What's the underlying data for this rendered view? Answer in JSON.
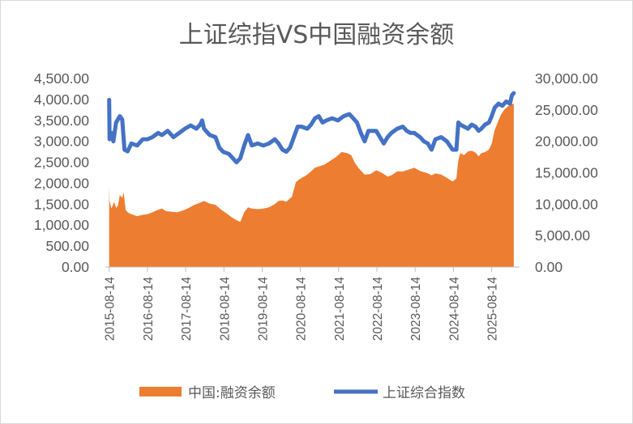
{
  "chart_data": {
    "type": "area+line",
    "title": "上证综指VS中国融资余额",
    "x_ticks": [
      "2015-08-14",
      "2016-08-14",
      "2017-08-14",
      "2018-08-14",
      "2019-08-14",
      "2020-08-14",
      "2021-08-14",
      "2022-08-14",
      "2023-08-14",
      "2024-08-14",
      "2025-08-14"
    ],
    "y_left": {
      "ticks": [
        "4,500.00",
        "4,000.00",
        "3,500.00",
        "3,000.00",
        "2,500.00",
        "2,000.00",
        "1,500.00",
        "1,000.00",
        "500.00",
        "0.00"
      ],
      "range": [
        0,
        4500
      ]
    },
    "y_right": {
      "ticks": [
        "30,000.00",
        "25,000.00",
        "20,000.00",
        "15,000.00",
        "10,000.00",
        "5,000.00",
        "0.00"
      ],
      "range": [
        0,
        30000
      ]
    },
    "x_range": [
      2015.52,
      2026.35
    ],
    "series": [
      {
        "name": "中国:融资余额",
        "kind": "area",
        "axis": "right",
        "color": "#ED7D31",
        "points": [
          [
            2015.62,
            12900
          ],
          [
            2015.63,
            10500
          ],
          [
            2015.68,
            9300
          ],
          [
            2015.75,
            10400
          ],
          [
            2015.8,
            9400
          ],
          [
            2015.85,
            9800
          ],
          [
            2015.9,
            11500
          ],
          [
            2015.96,
            11000
          ],
          [
            2016.0,
            11900
          ],
          [
            2016.05,
            9100
          ],
          [
            2016.1,
            8700
          ],
          [
            2016.2,
            8400
          ],
          [
            2016.35,
            8100
          ],
          [
            2016.5,
            8300
          ],
          [
            2016.62,
            8400
          ],
          [
            2016.75,
            8700
          ],
          [
            2016.9,
            9100
          ],
          [
            2017.0,
            9300
          ],
          [
            2017.1,
            8900
          ],
          [
            2017.25,
            8800
          ],
          [
            2017.4,
            8700
          ],
          [
            2017.55,
            9000
          ],
          [
            2017.7,
            9400
          ],
          [
            2017.85,
            9900
          ],
          [
            2017.98,
            10200
          ],
          [
            2018.1,
            10500
          ],
          [
            2018.25,
            10100
          ],
          [
            2018.4,
            9900
          ],
          [
            2018.55,
            9100
          ],
          [
            2018.7,
            8500
          ],
          [
            2018.85,
            7800
          ],
          [
            2019.0,
            7300
          ],
          [
            2019.05,
            7200
          ],
          [
            2019.15,
            8700
          ],
          [
            2019.25,
            9500
          ],
          [
            2019.35,
            9300
          ],
          [
            2019.5,
            9200
          ],
          [
            2019.65,
            9300
          ],
          [
            2019.8,
            9500
          ],
          [
            2019.95,
            10000
          ],
          [
            2020.05,
            10500
          ],
          [
            2020.15,
            10600
          ],
          [
            2020.25,
            10400
          ],
          [
            2020.4,
            11200
          ],
          [
            2020.5,
            13500
          ],
          [
            2020.6,
            14000
          ],
          [
            2020.75,
            14500
          ],
          [
            2020.9,
            15200
          ],
          [
            2021.0,
            15800
          ],
          [
            2021.1,
            16000
          ],
          [
            2021.25,
            16300
          ],
          [
            2021.4,
            16900
          ],
          [
            2021.55,
            17500
          ],
          [
            2021.7,
            18300
          ],
          [
            2021.85,
            18100
          ],
          [
            2021.95,
            17800
          ],
          [
            2022.05,
            16500
          ],
          [
            2022.15,
            15700
          ],
          [
            2022.3,
            14700
          ],
          [
            2022.45,
            14800
          ],
          [
            2022.6,
            15400
          ],
          [
            2022.75,
            15000
          ],
          [
            2022.9,
            14400
          ],
          [
            2023.0,
            14600
          ],
          [
            2023.15,
            15200
          ],
          [
            2023.3,
            15200
          ],
          [
            2023.45,
            15500
          ],
          [
            2023.6,
            15800
          ],
          [
            2023.75,
            15300
          ],
          [
            2023.85,
            15100
          ],
          [
            2023.95,
            14900
          ],
          [
            2024.05,
            14600
          ],
          [
            2024.15,
            14900
          ],
          [
            2024.3,
            14700
          ],
          [
            2024.45,
            14200
          ],
          [
            2024.6,
            13600
          ],
          [
            2024.7,
            14100
          ],
          [
            2024.75,
            17000
          ],
          [
            2024.8,
            18100
          ],
          [
            2024.9,
            17800
          ],
          [
            2025.0,
            18400
          ],
          [
            2025.1,
            18500
          ],
          [
            2025.2,
            18200
          ],
          [
            2025.28,
            17600
          ],
          [
            2025.35,
            18100
          ],
          [
            2025.45,
            18300
          ],
          [
            2025.55,
            18700
          ],
          [
            2025.62,
            19600
          ],
          [
            2025.7,
            21800
          ],
          [
            2025.78,
            23000
          ],
          [
            2025.86,
            24200
          ],
          [
            2025.95,
            25000
          ],
          [
            2026.05,
            25600
          ],
          [
            2026.15,
            25900
          ],
          [
            2026.2,
            26000
          ]
        ]
      },
      {
        "name": "上证综合指数",
        "kind": "line",
        "axis": "left",
        "color": "#4472C4",
        "points": [
          [
            2015.62,
            3990
          ],
          [
            2015.63,
            3050
          ],
          [
            2015.68,
            3200
          ],
          [
            2015.73,
            3000
          ],
          [
            2015.8,
            3450
          ],
          [
            2015.9,
            3600
          ],
          [
            2015.96,
            3520
          ],
          [
            2016.02,
            2800
          ],
          [
            2016.1,
            2760
          ],
          [
            2016.2,
            2950
          ],
          [
            2016.35,
            2900
          ],
          [
            2016.5,
            3050
          ],
          [
            2016.62,
            3050
          ],
          [
            2016.75,
            3100
          ],
          [
            2016.9,
            3200
          ],
          [
            2017.0,
            3150
          ],
          [
            2017.15,
            3250
          ],
          [
            2017.3,
            3100
          ],
          [
            2017.45,
            3200
          ],
          [
            2017.6,
            3300
          ],
          [
            2017.75,
            3380
          ],
          [
            2017.9,
            3300
          ],
          [
            2018.0,
            3400
          ],
          [
            2018.05,
            3500
          ],
          [
            2018.1,
            3300
          ],
          [
            2018.25,
            3150
          ],
          [
            2018.4,
            3100
          ],
          [
            2018.5,
            2850
          ],
          [
            2018.6,
            2750
          ],
          [
            2018.75,
            2700
          ],
          [
            2018.85,
            2600
          ],
          [
            2018.95,
            2500
          ],
          [
            2019.05,
            2600
          ],
          [
            2019.15,
            2900
          ],
          [
            2019.25,
            3150
          ],
          [
            2019.35,
            2900
          ],
          [
            2019.5,
            2950
          ],
          [
            2019.65,
            2900
          ],
          [
            2019.8,
            2950
          ],
          [
            2019.95,
            3050
          ],
          [
            2020.05,
            2950
          ],
          [
            2020.15,
            2800
          ],
          [
            2020.25,
            2750
          ],
          [
            2020.35,
            2850
          ],
          [
            2020.45,
            3100
          ],
          [
            2020.55,
            3350
          ],
          [
            2020.65,
            3350
          ],
          [
            2020.8,
            3300
          ],
          [
            2020.9,
            3400
          ],
          [
            2021.0,
            3550
          ],
          [
            2021.1,
            3600
          ],
          [
            2021.2,
            3450
          ],
          [
            2021.3,
            3500
          ],
          [
            2021.45,
            3550
          ],
          [
            2021.6,
            3500
          ],
          [
            2021.75,
            3600
          ],
          [
            2021.9,
            3650
          ],
          [
            2022.0,
            3550
          ],
          [
            2022.1,
            3450
          ],
          [
            2022.2,
            3200
          ],
          [
            2022.3,
            3000
          ],
          [
            2022.4,
            3250
          ],
          [
            2022.5,
            3250
          ],
          [
            2022.6,
            3250
          ],
          [
            2022.7,
            3100
          ],
          [
            2022.8,
            2950
          ],
          [
            2022.9,
            3100
          ],
          [
            2023.0,
            3200
          ],
          [
            2023.15,
            3300
          ],
          [
            2023.3,
            3350
          ],
          [
            2023.4,
            3250
          ],
          [
            2023.5,
            3200
          ],
          [
            2023.6,
            3200
          ],
          [
            2023.75,
            3100
          ],
          [
            2023.85,
            3000
          ],
          [
            2023.95,
            2950
          ],
          [
            2024.05,
            2800
          ],
          [
            2024.15,
            3050
          ],
          [
            2024.3,
            3100
          ],
          [
            2024.45,
            3000
          ],
          [
            2024.6,
            2800
          ],
          [
            2024.7,
            2800
          ],
          [
            2024.75,
            3450
          ],
          [
            2024.8,
            3400
          ],
          [
            2024.9,
            3350
          ],
          [
            2025.0,
            3300
          ],
          [
            2025.1,
            3400
          ],
          [
            2025.2,
            3350
          ],
          [
            2025.28,
            3250
          ],
          [
            2025.35,
            3300
          ],
          [
            2025.45,
            3400
          ],
          [
            2025.55,
            3450
          ],
          [
            2025.62,
            3600
          ],
          [
            2025.7,
            3800
          ],
          [
            2025.8,
            3900
          ],
          [
            2025.9,
            3850
          ],
          [
            2026.0,
            3950
          ],
          [
            2026.1,
            3900
          ],
          [
            2026.15,
            4100
          ],
          [
            2026.2,
            4150
          ]
        ]
      }
    ],
    "legend": {
      "position": "bottom"
    },
    "grid": false
  }
}
